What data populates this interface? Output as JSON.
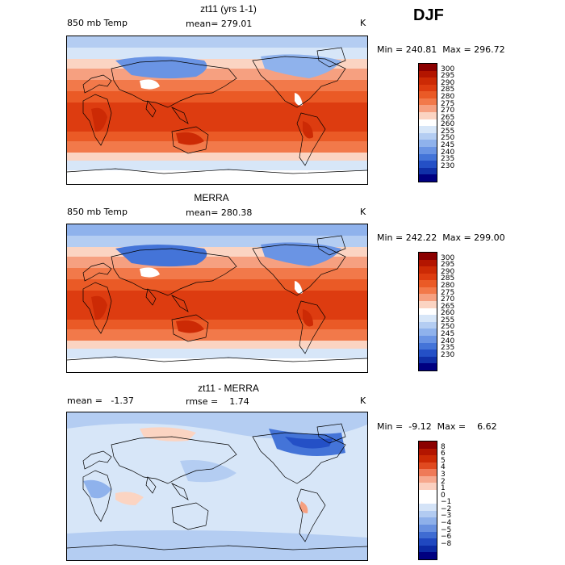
{
  "season": "DJF",
  "panels": [
    {
      "title": "zt11 (yrs 1-1)",
      "left_label": "850 mb Temp",
      "mid_label": "mean= 279.01",
      "unit": "K",
      "minmax": "Min = 240.81  Max = 296.72",
      "colorbar": {
        "ticks": [
          "300",
          "295",
          "290",
          "285",
          "280",
          "275",
          "270",
          "265",
          "260",
          "255",
          "250",
          "245",
          "240",
          "235",
          "230"
        ],
        "colors": [
          "#8b0000",
          "#b31500",
          "#cc2a05",
          "#dd3c10",
          "#ea5a26",
          "#f2794a",
          "#f6a080",
          "#fbd4c2",
          "#ffffff",
          "#d7e6f8",
          "#b4cdf2",
          "#8fb2ec",
          "#6a94e4",
          "#4474d8",
          "#2450c6",
          "#1030a8",
          "#000080"
        ]
      },
      "variant": "model"
    },
    {
      "title": "MERRA",
      "left_label": "850 mb Temp",
      "mid_label": "mean= 280.38",
      "unit": "K",
      "minmax": "Min = 242.22  Max = 299.00",
      "colorbar": {
        "ticks": [
          "300",
          "295",
          "290",
          "285",
          "280",
          "275",
          "270",
          "265",
          "260",
          "255",
          "250",
          "245",
          "240",
          "235",
          "230"
        ],
        "colors": [
          "#8b0000",
          "#b31500",
          "#cc2a05",
          "#dd3c10",
          "#ea5a26",
          "#f2794a",
          "#f6a080",
          "#fbd4c2",
          "#ffffff",
          "#d7e6f8",
          "#b4cdf2",
          "#8fb2ec",
          "#6a94e4",
          "#4474d8",
          "#2450c6",
          "#1030a8",
          "#000080"
        ]
      },
      "variant": "obs"
    },
    {
      "title": "zt11 - MERRA",
      "left_label": "mean =   -1.37",
      "mid_label": "rmse =    1.74",
      "unit": "K",
      "minmax": "Min =  -9.12  Max =    6.62",
      "colorbar": {
        "ticks": [
          "8",
          "6",
          "5",
          "4",
          "3",
          "2",
          "1",
          "0",
          "−1",
          "−2",
          "−3",
          "−4",
          "−5",
          "−6",
          "−8"
        ],
        "colors": [
          "#8b0000",
          "#b31500",
          "#cc2a05",
          "#e04a20",
          "#ef7a58",
          "#f6a88e",
          "#fbd0c0",
          "#ffffff",
          "#ffffff",
          "#d4e3f7",
          "#b2cbf1",
          "#8eb0ea",
          "#6890e0",
          "#3f6cd2",
          "#2048c0",
          "#0c2aa4",
          "#000080"
        ]
      },
      "variant": "diff"
    }
  ]
}
